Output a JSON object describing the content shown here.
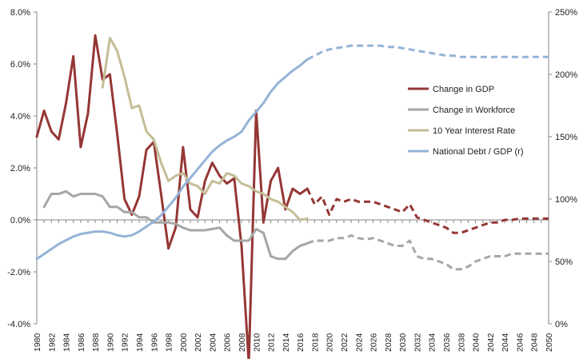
{
  "chart_data": {
    "type": "line",
    "title": "",
    "xlabel": "",
    "ylabel": "",
    "x_range": [
      1980,
      2050
    ],
    "y_left": {
      "range": [
        -4,
        8
      ],
      "unit": "%",
      "tick_labels": [
        "8.0%",
        "6.0%",
        "4.0%",
        "2.0%",
        "0.0%",
        "-2.0%",
        "-4.0%"
      ],
      "tick_values": [
        8,
        6,
        4,
        2,
        0,
        -2,
        -4
      ]
    },
    "y_right": {
      "range": [
        0,
        250
      ],
      "unit": "%",
      "tick_labels": [
        "250%",
        "200%",
        "150%",
        "100%",
        "50%",
        "0%"
      ],
      "tick_values": [
        250,
        200,
        150,
        100,
        50,
        0
      ]
    },
    "x_tick_labels": [
      "1980",
      "1982",
      "1984",
      "1986",
      "1988",
      "1990",
      "1992",
      "1994",
      "1996",
      "1998",
      "2000",
      "2002",
      "2004",
      "2006",
      "2008",
      "2010",
      "2012",
      "2014",
      "2016",
      "2018",
      "2020",
      "2022",
      "2024",
      "2026",
      "2028",
      "2030",
      "2032",
      "2034",
      "2036",
      "2038",
      "2040",
      "2042",
      "2044",
      "2046",
      "2048",
      "2050"
    ],
    "grid": false,
    "legend_position": "right",
    "series": [
      {
        "name": "Change in GDP",
        "axis": "left",
        "color": "#953735",
        "solid": [
          [
            1980,
            3.2
          ],
          [
            1981,
            4.2
          ],
          [
            1982,
            3.4
          ],
          [
            1983,
            3.1
          ],
          [
            1984,
            4.5
          ],
          [
            1985,
            6.3
          ],
          [
            1986,
            2.8
          ],
          [
            1987,
            4.1
          ],
          [
            1988,
            7.1
          ],
          [
            1989,
            5.4
          ],
          [
            1990,
            5.6
          ],
          [
            1991,
            3.3
          ],
          [
            1992,
            0.8
          ],
          [
            1993,
            0.2
          ],
          [
            1994,
            0.9
          ],
          [
            1995,
            2.7
          ],
          [
            1996,
            3.0
          ],
          [
            1997,
            1.0
          ],
          [
            1998,
            -1.1
          ],
          [
            1999,
            -0.3
          ],
          [
            2000,
            2.8
          ],
          [
            2001,
            0.4
          ],
          [
            2002,
            0.1
          ],
          [
            2003,
            1.5
          ],
          [
            2004,
            2.2
          ],
          [
            2005,
            1.7
          ],
          [
            2006,
            1.4
          ],
          [
            2007,
            1.6
          ],
          [
            2008,
            -1.0
          ],
          [
            2009,
            -5.5
          ],
          [
            2010,
            4.2
          ],
          [
            2011,
            -0.1
          ],
          [
            2012,
            1.5
          ],
          [
            2013,
            2.0
          ],
          [
            2014,
            0.4
          ],
          [
            2015,
            1.2
          ],
          [
            2016,
            1.0
          ],
          [
            2017,
            1.2
          ]
        ],
        "projected": [
          [
            2017,
            1.2
          ],
          [
            2018,
            0.6
          ],
          [
            2019,
            0.9
          ],
          [
            2020,
            0.2
          ],
          [
            2021,
            0.8
          ],
          [
            2022,
            0.7
          ],
          [
            2023,
            0.8
          ],
          [
            2024,
            0.7
          ],
          [
            2025,
            0.7
          ],
          [
            2026,
            0.7
          ],
          [
            2027,
            0.6
          ],
          [
            2028,
            0.5
          ],
          [
            2029,
            0.4
          ],
          [
            2030,
            0.3
          ],
          [
            2031,
            0.6
          ],
          [
            2032,
            0.1
          ],
          [
            2033,
            0.0
          ],
          [
            2034,
            -0.1
          ],
          [
            2035,
            -0.2
          ],
          [
            2036,
            -0.3
          ],
          [
            2037,
            -0.5
          ],
          [
            2038,
            -0.5
          ],
          [
            2039,
            -0.4
          ],
          [
            2040,
            -0.3
          ],
          [
            2041,
            -0.2
          ],
          [
            2042,
            -0.1
          ],
          [
            2043,
            -0.1
          ],
          [
            2044,
            0.0
          ],
          [
            2045,
            0.0
          ],
          [
            2046,
            0.05
          ],
          [
            2047,
            0.05
          ],
          [
            2048,
            0.05
          ],
          [
            2049,
            0.05
          ],
          [
            2050,
            0.05
          ]
        ]
      },
      {
        "name": "Change in Workforce",
        "axis": "left",
        "color": "#a6a6a6",
        "solid": [
          [
            1981,
            0.5
          ],
          [
            1982,
            1.0
          ],
          [
            1983,
            1.0
          ],
          [
            1984,
            1.1
          ],
          [
            1985,
            0.9
          ],
          [
            1986,
            1.0
          ],
          [
            1987,
            1.0
          ],
          [
            1988,
            1.0
          ],
          [
            1989,
            0.9
          ],
          [
            1990,
            0.5
          ],
          [
            1991,
            0.5
          ],
          [
            1992,
            0.3
          ],
          [
            1993,
            0.3
          ],
          [
            1994,
            0.1
          ],
          [
            1995,
            0.1
          ],
          [
            1996,
            -0.1
          ],
          [
            1997,
            -0.1
          ],
          [
            1998,
            -0.1
          ],
          [
            1999,
            -0.15
          ],
          [
            2000,
            -0.3
          ],
          [
            2001,
            -0.4
          ],
          [
            2002,
            -0.4
          ],
          [
            2003,
            -0.4
          ],
          [
            2004,
            -0.35
          ],
          [
            2005,
            -0.3
          ],
          [
            2006,
            -0.6
          ],
          [
            2007,
            -0.8
          ],
          [
            2008,
            -0.8
          ],
          [
            2009,
            -0.8
          ],
          [
            2010,
            -0.35
          ],
          [
            2011,
            -0.5
          ],
          [
            2012,
            -1.4
          ],
          [
            2013,
            -1.5
          ],
          [
            2014,
            -1.5
          ],
          [
            2015,
            -1.2
          ],
          [
            2016,
            -1.0
          ],
          [
            2017,
            -0.9
          ]
        ],
        "projected": [
          [
            2017,
            -0.9
          ],
          [
            2018,
            -0.8
          ],
          [
            2019,
            -0.8
          ],
          [
            2020,
            -0.8
          ],
          [
            2021,
            -0.7
          ],
          [
            2022,
            -0.7
          ],
          [
            2023,
            -0.6
          ],
          [
            2024,
            -0.7
          ],
          [
            2025,
            -0.75
          ],
          [
            2026,
            -0.7
          ],
          [
            2027,
            -0.8
          ],
          [
            2028,
            -0.9
          ],
          [
            2029,
            -1.0
          ],
          [
            2030,
            -1.0
          ],
          [
            2031,
            -0.8
          ],
          [
            2032,
            -1.4
          ],
          [
            2033,
            -1.5
          ],
          [
            2034,
            -1.5
          ],
          [
            2035,
            -1.6
          ],
          [
            2036,
            -1.7
          ],
          [
            2037,
            -1.9
          ],
          [
            2038,
            -1.9
          ],
          [
            2039,
            -1.8
          ],
          [
            2040,
            -1.6
          ],
          [
            2041,
            -1.5
          ],
          [
            2042,
            -1.4
          ],
          [
            2043,
            -1.4
          ],
          [
            2044,
            -1.4
          ],
          [
            2045,
            -1.3
          ],
          [
            2046,
            -1.3
          ],
          [
            2047,
            -1.3
          ],
          [
            2048,
            -1.3
          ],
          [
            2049,
            -1.3
          ],
          [
            2050,
            -1.3
          ]
        ]
      },
      {
        "name": "10 Year Interest Rate",
        "axis": "left",
        "color": "#c4bd97",
        "solid": [
          [
            1989,
            5.1
          ],
          [
            1990,
            7.0
          ],
          [
            1991,
            6.5
          ],
          [
            1992,
            5.5
          ],
          [
            1993,
            4.3
          ],
          [
            1994,
            4.4
          ],
          [
            1995,
            3.4
          ],
          [
            1996,
            3.1
          ],
          [
            1997,
            2.2
          ],
          [
            1998,
            1.5
          ],
          [
            1999,
            1.7
          ],
          [
            2000,
            1.8
          ],
          [
            2001,
            1.4
          ],
          [
            2002,
            1.3
          ],
          [
            2003,
            1.0
          ],
          [
            2004,
            1.5
          ],
          [
            2005,
            1.4
          ],
          [
            2006,
            1.8
          ],
          [
            2007,
            1.7
          ],
          [
            2008,
            1.4
          ],
          [
            2009,
            1.3
          ],
          [
            2010,
            1.1
          ],
          [
            2011,
            1.0
          ],
          [
            2012,
            0.8
          ],
          [
            2013,
            0.7
          ],
          [
            2014,
            0.5
          ],
          [
            2015,
            0.3
          ],
          [
            2016,
            0.0
          ],
          [
            2017,
            0.05
          ]
        ],
        "projected": []
      },
      {
        "name": "National Debt / GDP (r)",
        "axis": "right",
        "color": "#95b3d7",
        "solid": [
          [
            1980,
            52
          ],
          [
            1981,
            56
          ],
          [
            1982,
            60
          ],
          [
            1983,
            64
          ],
          [
            1984,
            67
          ],
          [
            1985,
            70
          ],
          [
            1986,
            72
          ],
          [
            1987,
            73
          ],
          [
            1988,
            74
          ],
          [
            1989,
            74
          ],
          [
            1990,
            73
          ],
          [
            1991,
            71
          ],
          [
            1992,
            70
          ],
          [
            1993,
            71
          ],
          [
            1994,
            74
          ],
          [
            1995,
            78
          ],
          [
            1996,
            82
          ],
          [
            1997,
            87
          ],
          [
            1998,
            94
          ],
          [
            1999,
            101
          ],
          [
            2000,
            110
          ],
          [
            2001,
            117
          ],
          [
            2002,
            124
          ],
          [
            2003,
            131
          ],
          [
            2004,
            138
          ],
          [
            2005,
            143
          ],
          [
            2006,
            147
          ],
          [
            2007,
            150
          ],
          [
            2008,
            154
          ],
          [
            2009,
            163
          ],
          [
            2010,
            170
          ],
          [
            2011,
            177
          ],
          [
            2012,
            186
          ],
          [
            2013,
            193
          ],
          [
            2014,
            198
          ],
          [
            2015,
            203
          ],
          [
            2016,
            207
          ],
          [
            2017,
            212
          ]
        ],
        "projected": [
          [
            2017,
            212
          ],
          [
            2018,
            215
          ],
          [
            2019,
            218
          ],
          [
            2020,
            220
          ],
          [
            2021,
            221
          ],
          [
            2022,
            222
          ],
          [
            2023,
            223
          ],
          [
            2024,
            223
          ],
          [
            2025,
            223
          ],
          [
            2026,
            223
          ],
          [
            2027,
            223
          ],
          [
            2028,
            222
          ],
          [
            2029,
            222
          ],
          [
            2030,
            221
          ],
          [
            2031,
            220
          ],
          [
            2032,
            219
          ],
          [
            2033,
            218
          ],
          [
            2034,
            217
          ],
          [
            2035,
            216
          ],
          [
            2036,
            215
          ],
          [
            2037,
            215
          ],
          [
            2038,
            214
          ],
          [
            2039,
            214
          ],
          [
            2040,
            214
          ],
          [
            2041,
            214
          ],
          [
            2042,
            214
          ],
          [
            2043,
            214
          ],
          [
            2044,
            214
          ],
          [
            2045,
            214
          ],
          [
            2046,
            214
          ],
          [
            2047,
            214
          ],
          [
            2048,
            214
          ],
          [
            2049,
            214
          ],
          [
            2050,
            214
          ]
        ]
      }
    ]
  }
}
